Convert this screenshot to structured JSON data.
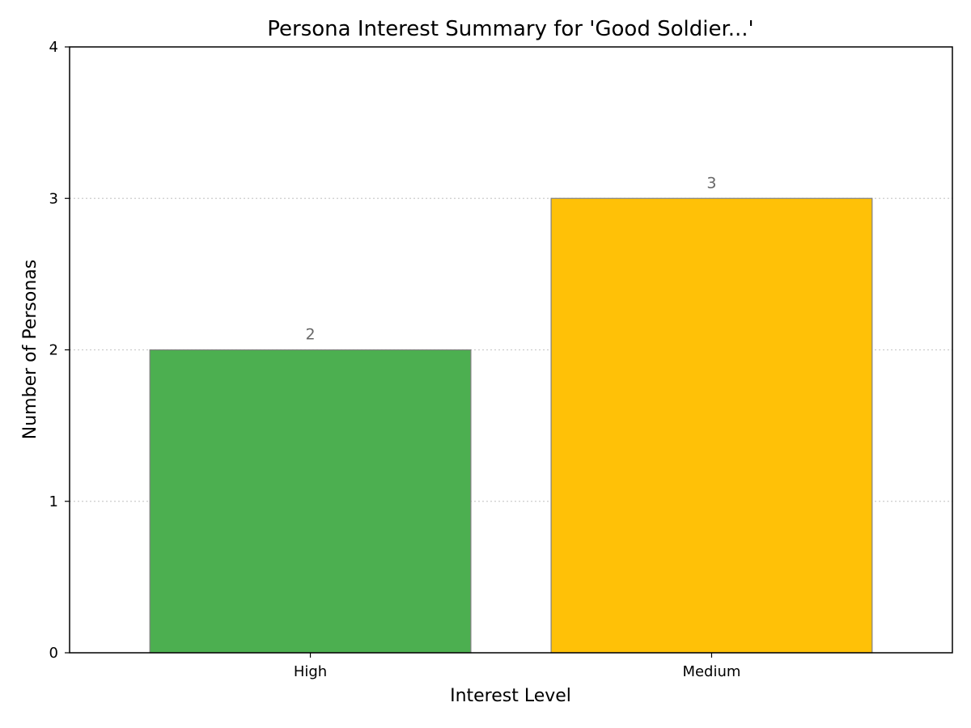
{
  "chart_data": {
    "type": "bar",
    "title": "Persona Interest Summary for 'Good Soldier...'",
    "xlabel": "Interest Level",
    "ylabel": "Number of Personas",
    "categories": [
      "High",
      "Medium"
    ],
    "values": [
      2,
      3
    ],
    "data_labels": [
      "2",
      "3"
    ],
    "bar_colors": [
      "#4caf50",
      "#ffc107"
    ],
    "bar_edge_color": "#808080",
    "data_label_color": "#666666",
    "grid_color": "#cccccc",
    "ylim": [
      0,
      4
    ],
    "yticks": [
      0,
      1,
      2,
      3,
      4
    ],
    "ytick_labels": [
      "0",
      "1",
      "2",
      "3",
      "4"
    ],
    "grid": "y-dotted",
    "legend": "none"
  }
}
